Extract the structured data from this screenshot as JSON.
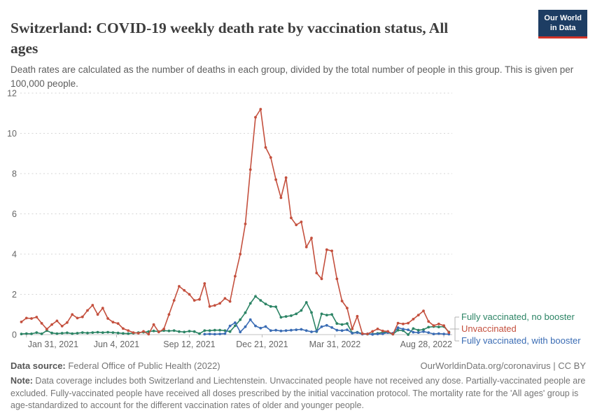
{
  "header": {
    "title_line1": "Switzerland: COVID-19 weekly death rate by vaccination status, All",
    "title_line2": "ages",
    "subtitle": "Death rates are calculated as the number of deaths in each group, divided by the total number of people in this group. This is given per 100,000 people.",
    "logo_line1": "Our World",
    "logo_line2": "in Data"
  },
  "chart_data": {
    "type": "line",
    "x_unit": "week",
    "x_ticks": [
      {
        "label": "Jan 31, 2021",
        "week": 1,
        "align": "start"
      },
      {
        "label": "Jun 4, 2021",
        "week": 18.7,
        "align": "middle"
      },
      {
        "label": "Sep 12, 2021",
        "week": 33,
        "align": "middle"
      },
      {
        "label": "Dec 21, 2021",
        "week": 47.3,
        "align": "middle"
      },
      {
        "label": "Mar 31, 2022",
        "week": 61.6,
        "align": "middle"
      },
      {
        "label": "Aug 28, 2022",
        "week": 83,
        "align": "end"
      }
    ],
    "y_ticks": [
      0,
      2,
      4,
      6,
      8,
      10,
      12
    ],
    "ylim": [
      0,
      12
    ],
    "grid": "dotted-horizontal",
    "legend_position": "right-of-plot",
    "series": [
      {
        "name": "Fully vaccinated, no booster",
        "color": "#2c8465",
        "values": [
          0.03,
          0.05,
          0.04,
          0.1,
          0.04,
          0.2,
          0.08,
          0.05,
          0.07,
          0.09,
          0.05,
          0.07,
          0.1,
          0.08,
          0.1,
          0.12,
          0.1,
          0.12,
          0.1,
          0.08,
          0.06,
          0.05,
          0.07,
          0.1,
          0.12,
          0.15,
          0.18,
          0.15,
          0.2,
          0.18,
          0.2,
          0.15,
          0.13,
          0.17,
          0.15,
          0.05,
          0.2,
          0.2,
          0.22,
          0.22,
          0.2,
          0.15,
          0.44,
          0.74,
          1.09,
          1.55,
          1.9,
          1.7,
          1.52,
          1.4,
          1.38,
          0.86,
          0.9,
          0.94,
          1.03,
          1.2,
          1.6,
          1.1,
          0.15,
          1.03,
          0.97,
          1.0,
          0.55,
          0.5,
          0.55,
          0.08,
          0.12,
          0.05,
          0.02,
          0.03,
          0.06,
          0.12,
          0.1,
          0.02,
          0.22,
          0.2,
          0.0,
          0.3,
          0.22,
          0.25,
          0.37,
          0.4,
          0.38,
          0.4,
          0.13
        ]
      },
      {
        "name": "Fully vaccinated, with booster",
        "color": "#3a6cb4",
        "values": [
          null,
          null,
          null,
          null,
          null,
          null,
          null,
          null,
          null,
          null,
          null,
          null,
          null,
          null,
          null,
          null,
          null,
          null,
          null,
          null,
          null,
          null,
          null,
          null,
          null,
          null,
          null,
          null,
          null,
          null,
          null,
          null,
          null,
          null,
          null,
          null,
          0.02,
          0.03,
          0.02,
          0.03,
          0.05,
          0.43,
          0.59,
          0.13,
          0.39,
          0.74,
          0.43,
          0.32,
          0.4,
          0.2,
          0.22,
          0.18,
          0.2,
          0.22,
          0.24,
          0.26,
          0.2,
          0.14,
          0.17,
          0.39,
          0.46,
          0.35,
          0.22,
          0.2,
          0.24,
          0.07,
          0.1,
          0.02,
          0.04,
          0.01,
          0.03,
          0.04,
          0.1,
          0.07,
          0.34,
          0.27,
          0.24,
          0.12,
          0.1,
          0.15,
          0.1,
          0.03,
          0.05,
          0.03,
          0.02
        ]
      },
      {
        "name": "Unvaccinated",
        "color": "#c4503e",
        "values": [
          0.63,
          0.82,
          0.8,
          0.87,
          0.56,
          0.27,
          0.5,
          0.68,
          0.42,
          0.6,
          1.0,
          0.82,
          0.88,
          1.2,
          1.46,
          1.0,
          1.32,
          0.8,
          0.62,
          0.55,
          0.3,
          0.2,
          0.1,
          0.07,
          0.16,
          0.02,
          0.5,
          0.13,
          0.28,
          1.0,
          1.7,
          2.4,
          2.2,
          2.0,
          1.7,
          1.75,
          2.54,
          1.4,
          1.45,
          1.55,
          1.8,
          1.65,
          2.9,
          4.0,
          5.5,
          8.2,
          10.8,
          11.2,
          9.3,
          8.8,
          7.7,
          6.8,
          7.8,
          5.8,
          5.45,
          5.6,
          4.35,
          4.8,
          3.06,
          2.77,
          4.22,
          4.16,
          2.77,
          1.67,
          1.32,
          0.28,
          0.91,
          0.05,
          0.03,
          0.16,
          0.28,
          0.18,
          0.16,
          0.02,
          0.57,
          0.53,
          0.57,
          0.77,
          0.97,
          1.18,
          0.65,
          0.45,
          0.53,
          0.45,
          0.1
        ]
      }
    ]
  },
  "legend": {
    "items": [
      {
        "label": "Fully vaccinated, no booster",
        "color": "#2c8465"
      },
      {
        "label": "Unvaccinated",
        "color": "#c4503e"
      },
      {
        "label": "Fully vaccinated, with booster",
        "color": "#3a6cb4"
      }
    ]
  },
  "footer": {
    "data_source_label": "Data source:",
    "data_source_text": " Federal Office of Public Health (2022)",
    "link": "OurWorldinData.org/coronavirus | CC BY",
    "note_label": "Note:",
    "note_text": " Data coverage includes both Switzerland and Liechtenstein. Unvaccinated people have not received any dose. Partially-vaccinated people are excluded. Fully-vaccinated people have received all doses prescribed by the initial vaccination protocol. The mortality rate for the 'All ages' group is age-standardized to account for the different vaccination rates of older and younger people."
  }
}
